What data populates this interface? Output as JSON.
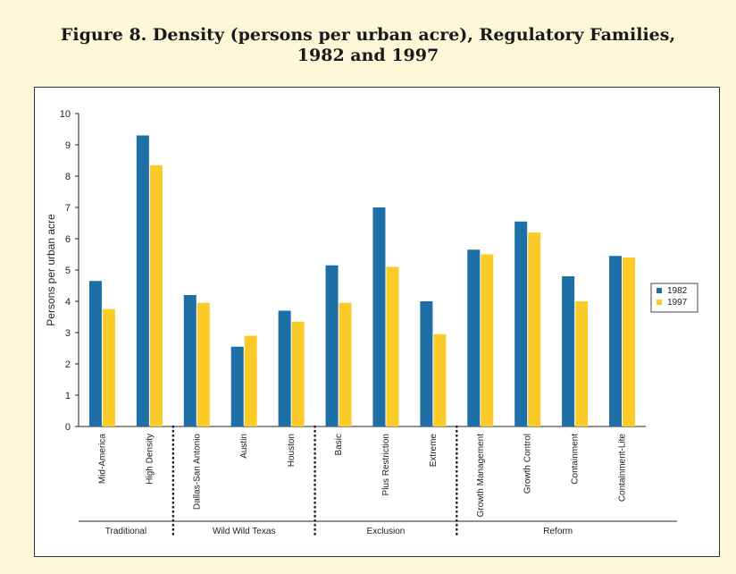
{
  "title_line1": "Figure 8. Density (persons per urban acre), Regulatory Families,",
  "title_line2": "1982 and 1997",
  "colors": {
    "s1982": "#1d6fa5",
    "s1997": "#fbcb2a",
    "background": "#fdf7d8"
  },
  "chart_data": {
    "type": "bar",
    "ylabel": "Persons per urban acre",
    "xlabel": "",
    "ylim": [
      0,
      10
    ],
    "yticks": [
      "0",
      "1",
      "2",
      "3",
      "4",
      "5",
      "6",
      "7",
      "8",
      "9",
      "10"
    ],
    "grid": false,
    "legend_position": "right",
    "categories": [
      "Mid-America",
      "High Density",
      "Dallas-San Antonio",
      "Austin",
      "Houston",
      "Basic",
      "Plus Restriction",
      "Extreme",
      "Growth Management",
      "Growth Control",
      "Containment",
      "Containment-Lite"
    ],
    "series": [
      {
        "name": "1982",
        "values": [
          4.65,
          9.3,
          4.2,
          2.55,
          3.7,
          5.15,
          7.0,
          4.0,
          5.65,
          6.55,
          4.8,
          5.45
        ]
      },
      {
        "name": "1997",
        "values": [
          3.75,
          8.35,
          3.95,
          2.9,
          3.35,
          3.95,
          5.1,
          2.95,
          5.5,
          6.2,
          4.0,
          5.4
        ]
      }
    ],
    "groups": [
      {
        "name": "Traditional",
        "categories": [
          "Mid-America",
          "High Density"
        ]
      },
      {
        "name": "Wild Wild Texas",
        "categories": [
          "Dallas-San Antonio",
          "Austin",
          "Houston"
        ]
      },
      {
        "name": "Exclusion",
        "categories": [
          "Basic",
          "Plus Restriction",
          "Extreme"
        ]
      },
      {
        "name": "Reform",
        "categories": [
          "Growth Management",
          "Growth Control",
          "Containment",
          "Containment-Lite"
        ]
      }
    ]
  }
}
